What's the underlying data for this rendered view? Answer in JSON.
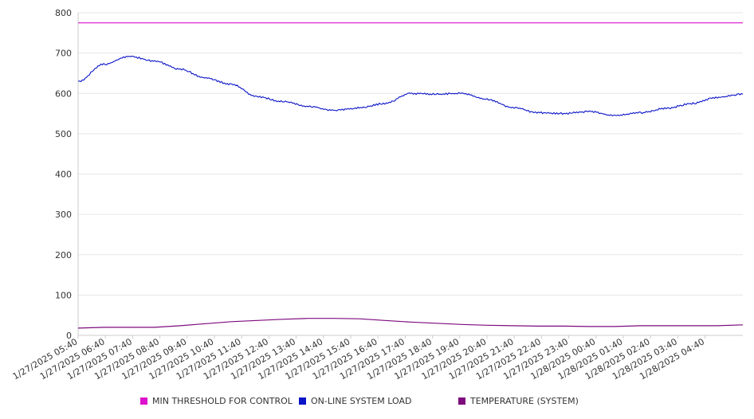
{
  "chart_data": {
    "type": "line",
    "title": "",
    "xlabel": "",
    "ylabel": "",
    "ylim": [
      0,
      800
    ],
    "yticks": [
      "0",
      "100",
      "200",
      "300",
      "400",
      "500",
      "600",
      "700",
      "800"
    ],
    "x_tick_labels": [
      "1/27/2025 05:40",
      "1/27/2025 06:40",
      "1/27/2025 07:40",
      "1/27/2025 08:40",
      "1/27/2025 09:40",
      "1/27/2025 10:40",
      "1/27/2025 11:40",
      "1/27/2025 12:40",
      "1/27/2025 13:40",
      "1/27/2025 14:40",
      "1/27/2025 15:40",
      "1/27/2025 16:40",
      "1/27/2025 17:40",
      "1/27/2025 18:40",
      "1/27/2025 19:40",
      "1/27/2025 20:40",
      "1/27/2025 21:40",
      "1/27/2025 22:40",
      "1/27/2025 23:40",
      "1/28/2025 00:40",
      "1/28/2025 01:40",
      "1/28/2025 02:40",
      "1/28/2025 03:40",
      "1/28/2025 04:40"
    ],
    "x": [
      "05:40",
      "06:40",
      "07:10",
      "07:40",
      "08:40",
      "09:40",
      "10:40",
      "11:40",
      "12:40",
      "13:40",
      "14:40",
      "15:40",
      "16:40",
      "17:40",
      "18:40",
      "19:40",
      "20:40",
      "21:40",
      "22:40",
      "23:40",
      "00:40",
      "01:10",
      "01:40",
      "02:40",
      "03:40",
      "04:40",
      "05:40"
    ],
    "grid": true,
    "legend_position": "bottom",
    "series": [
      {
        "name": "MIN THRESHOLD FOR CONTROL",
        "color": "#dd11cc",
        "values": [
          775,
          775,
          775,
          775,
          775,
          775,
          775,
          775,
          775,
          775,
          775,
          775,
          775,
          775,
          775,
          775,
          775,
          775,
          775,
          775,
          775,
          775,
          775,
          775,
          775,
          775,
          775
        ]
      },
      {
        "name": "ON-LINE SYSTEM LOAD",
        "color": "#0a14c8",
        "values": [
          630,
          672,
          692,
          680,
          660,
          638,
          622,
          592,
          580,
          568,
          558,
          564,
          575,
          600,
          598,
          600,
          585,
          565,
          552,
          550,
          555,
          545,
          552,
          563,
          575,
          590,
          598
        ]
      },
      {
        "name": "TEMPERATURE (SYSTEM)",
        "color": "#7d0a7d",
        "values": [
          18,
          20,
          20,
          20,
          24,
          29,
          34,
          37,
          40,
          42,
          42,
          41,
          37,
          33,
          30,
          27,
          25,
          24,
          23,
          23,
          22,
          22,
          24,
          24,
          24,
          24,
          26
        ]
      }
    ]
  }
}
